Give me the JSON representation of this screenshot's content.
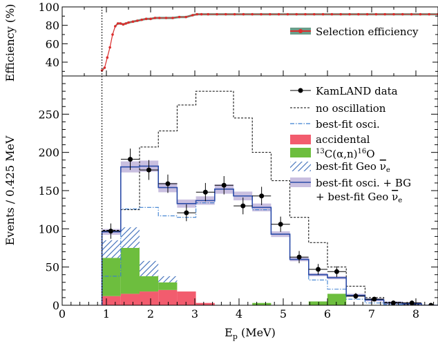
{
  "chart_data": [
    {
      "type": "line",
      "ylabel": "Efficiency (%)",
      "ylim": [
        25,
        100
      ],
      "xlim": [
        0,
        8.5
      ],
      "yticks": [
        40,
        60,
        80,
        100
      ],
      "legend": {
        "position": "top-right",
        "entries": [
          "Selection efficiency"
        ]
      },
      "series": [
        {
          "name": "Selection efficiency",
          "color": "#dc2c2c",
          "band_color": "#6a9e8a",
          "x": [
            0.9,
            0.96,
            1.02,
            1.08,
            1.14,
            1.2,
            1.26,
            1.32,
            1.38,
            1.44,
            1.5,
            1.6,
            1.7,
            1.8,
            1.9,
            2.0,
            2.1,
            2.2,
            2.35,
            2.5,
            2.65,
            2.8,
            2.95,
            3.05,
            3.15,
            3.3,
            3.5,
            3.7,
            3.9,
            4.1,
            4.3,
            4.5,
            4.7,
            4.9,
            5.1,
            5.3,
            5.5,
            5.7,
            5.9,
            6.1,
            6.3,
            6.5,
            6.7,
            6.9,
            7.1,
            7.3,
            7.5,
            7.7,
            7.9,
            8.1,
            8.3,
            8.5
          ],
          "y": [
            31,
            34,
            45,
            56,
            70,
            79,
            82,
            82,
            81,
            82,
            83,
            84,
            85,
            86,
            87,
            87,
            88,
            88,
            88,
            88,
            89,
            89,
            91,
            92,
            92,
            92,
            92,
            92,
            92,
            92,
            92,
            92,
            92,
            92,
            92,
            92,
            92,
            92,
            92,
            92,
            92,
            92,
            92,
            92,
            92,
            92,
            92,
            92,
            92,
            92,
            92,
            92
          ]
        }
      ]
    },
    {
      "type": "bar",
      "ylabel": "Events / 0.425 MeV",
      "xlabel_main": "E",
      "xlabel_sub": "p",
      "xlabel_unit": " (MeV)",
      "xlim": [
        0,
        8.5
      ],
      "ylim": [
        0,
        300
      ],
      "xticks": [
        0,
        1,
        2,
        3,
        4,
        5,
        6,
        7,
        8
      ],
      "yticks": [
        0,
        50,
        100,
        150,
        200,
        250
      ],
      "threshold_line": 0.9,
      "bin_edges": [
        0.9,
        1.325,
        1.75,
        2.175,
        2.6,
        3.025,
        3.45,
        3.875,
        4.3,
        4.725,
        5.15,
        5.575,
        6.0,
        6.425,
        6.85,
        7.275,
        7.7,
        8.125,
        8.55
      ],
      "legend_position": "right",
      "data": {
        "name": "KamLAND data",
        "x": [
          1.1,
          1.54,
          1.96,
          2.39,
          2.81,
          3.24,
          3.66,
          4.09,
          4.51,
          4.94,
          5.36,
          5.79,
          6.21,
          6.64,
          7.06,
          7.49,
          7.91,
          8.34
        ],
        "y": [
          97,
          191,
          177,
          159,
          121,
          148,
          157,
          130,
          143,
          106,
          63,
          47,
          44,
          12,
          8,
          3,
          3,
          0
        ],
        "err": [
          10,
          14,
          13,
          12,
          11,
          12,
          12,
          11,
          12,
          10,
          8,
          7,
          7,
          4,
          3,
          2,
          2,
          1
        ]
      },
      "no_oscillation": {
        "name": "no oscillation",
        "values": [
          98,
          125,
          207,
          228,
          262,
          280,
          280,
          245,
          200,
          163,
          115,
          82,
          50,
          25,
          10,
          4,
          1,
          0
        ]
      },
      "best_fit_osci": {
        "name": "best-fit osci.",
        "values": [
          38,
          126,
          128,
          117,
          115,
          134,
          152,
          143,
          125,
          93,
          60,
          33,
          21,
          8,
          3,
          1,
          0,
          0
        ]
      },
      "accidental": {
        "name": "accidental",
        "color": "#f25c6e",
        "values": [
          12,
          15,
          18,
          20,
          18,
          3,
          0,
          0,
          0,
          0,
          0,
          0,
          0,
          0,
          0,
          0,
          0,
          0
        ]
      },
      "c13": {
        "name_main": "C(α,n)",
        "name_sup1": "13",
        "name_sup2": "16",
        "name_end": "O",
        "color": "#6dbe3e",
        "values": [
          50,
          60,
          20,
          10,
          0,
          0,
          0,
          0,
          3,
          0,
          0,
          5,
          15,
          0,
          0,
          0,
          0,
          0
        ]
      },
      "geo": {
        "name_main": "best-fit Geo ",
        "name_nu": "ν",
        "name_sub": "e",
        "color": "#3a6bb8",
        "values": [
          23,
          27,
          20,
          8,
          0,
          0,
          0,
          0,
          0,
          0,
          0,
          0,
          0,
          0,
          0,
          0,
          0,
          0
        ]
      },
      "best_fit_total": {
        "name_line1": "best-fit osci. + BG",
        "name_line2": "+ best-fit Geo ",
        "color": "#2b4ba8",
        "band_color": "#c9bfe0",
        "values": [
          96,
          181,
          182,
          154,
          133,
          137,
          152,
          143,
          128,
          93,
          60,
          40,
          36,
          13,
          7,
          3,
          2,
          0
        ]
      }
    }
  ]
}
